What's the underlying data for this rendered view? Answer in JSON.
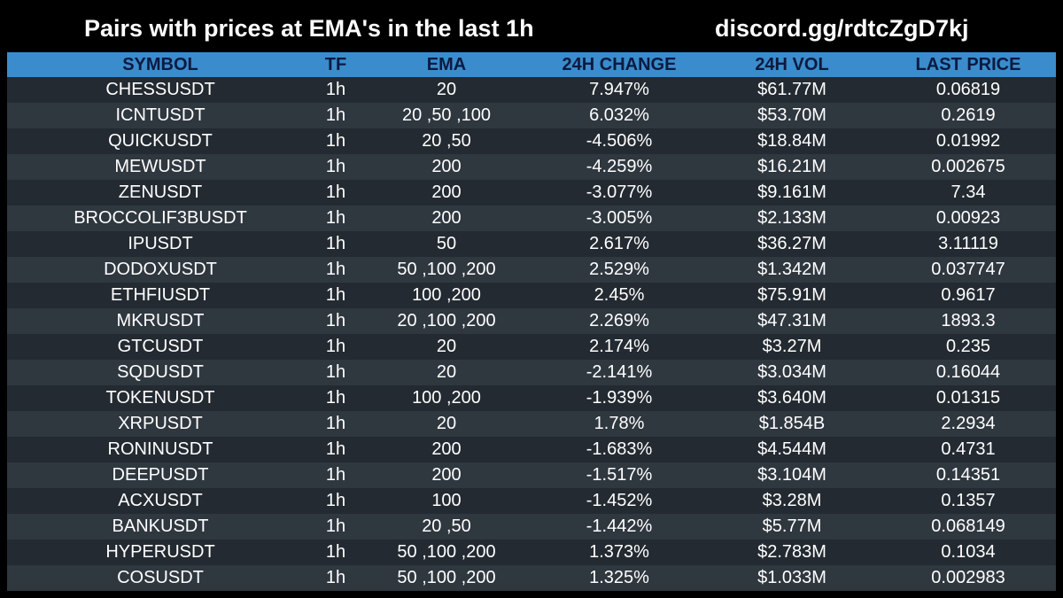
{
  "header": {
    "title": "Pairs with prices at EMA's in the last 1h",
    "link": "discord.gg/rdtcZgD7kj"
  },
  "colors": {
    "header_row": "#3a8ccc",
    "header_text": "#0b1a40",
    "row_odd": "#232a31",
    "row_even": "#2f373f",
    "background": "#000000"
  },
  "table": {
    "columns": [
      "SYMBOL",
      "TF",
      "EMA",
      "24H CHANGE",
      "24H VOL",
      "LAST PRICE"
    ],
    "rows": [
      [
        "CHESSUSDT",
        "1h",
        "20",
        "7.947%",
        "$61.77M",
        "0.06819"
      ],
      [
        "ICNTUSDT",
        "1h",
        "20 ,50 ,100",
        "6.032%",
        "$53.70M",
        "0.2619"
      ],
      [
        "QUICKUSDT",
        "1h",
        "20 ,50",
        "-4.506%",
        "$18.84M",
        "0.01992"
      ],
      [
        "MEWUSDT",
        "1h",
        "200",
        "-4.259%",
        "$16.21M",
        "0.002675"
      ],
      [
        "ZENUSDT",
        "1h",
        "200",
        "-3.077%",
        "$9.161M",
        "7.34"
      ],
      [
        "BROCCOLIF3BUSDT",
        "1h",
        "200",
        "-3.005%",
        "$2.133M",
        "0.00923"
      ],
      [
        "IPUSDT",
        "1h",
        "50",
        "2.617%",
        "$36.27M",
        "3.11119"
      ],
      [
        "DODOXUSDT",
        "1h",
        "50 ,100 ,200",
        "2.529%",
        "$1.342M",
        "0.037747"
      ],
      [
        "ETHFIUSDT",
        "1h",
        "100 ,200",
        "2.45%",
        "$75.91M",
        "0.9617"
      ],
      [
        "MKRUSDT",
        "1h",
        "20 ,100 ,200",
        "2.269%",
        "$47.31M",
        "1893.3"
      ],
      [
        "GTCUSDT",
        "1h",
        "20",
        "2.174%",
        "$3.27M",
        "0.235"
      ],
      [
        "SQDUSDT",
        "1h",
        "20",
        "-2.141%",
        "$3.034M",
        "0.16044"
      ],
      [
        "TOKENUSDT",
        "1h",
        "100 ,200",
        "-1.939%",
        "$3.640M",
        "0.01315"
      ],
      [
        "XRPUSDT",
        "1h",
        "20",
        "1.78%",
        "$1.854B",
        "2.2934"
      ],
      [
        "RONINUSDT",
        "1h",
        "200",
        "-1.683%",
        "$4.544M",
        "0.4731"
      ],
      [
        "DEEPUSDT",
        "1h",
        "200",
        "-1.517%",
        "$3.104M",
        "0.14351"
      ],
      [
        "ACXUSDT",
        "1h",
        "100",
        "-1.452%",
        "$3.28M",
        "0.1357"
      ],
      [
        "BANKUSDT",
        "1h",
        "20 ,50",
        "-1.442%",
        "$5.77M",
        "0.068149"
      ],
      [
        "HYPERUSDT",
        "1h",
        "50 ,100 ,200",
        "1.373%",
        "$2.783M",
        "0.1034"
      ],
      [
        "COSUSDT",
        "1h",
        "50 ,100 ,200",
        "1.325%",
        "$1.033M",
        "0.002983"
      ]
    ]
  }
}
